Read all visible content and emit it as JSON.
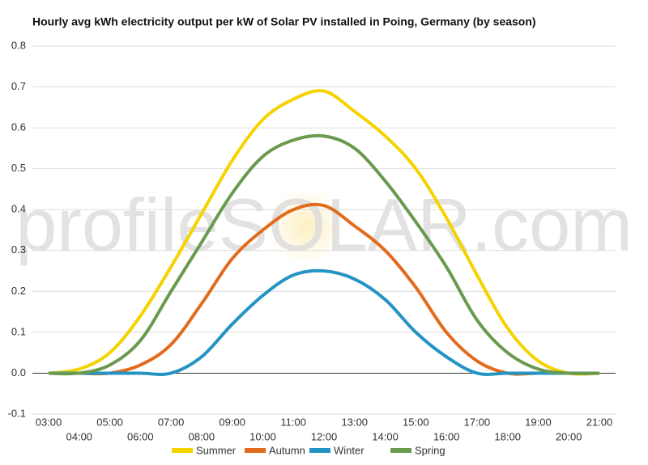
{
  "chart_data": {
    "type": "line",
    "title": "Hourly avg kWh electricity output per kW of Solar PV installed in Poing, Germany (by season)",
    "watermark": "profileSOLAR.com",
    "categories": [
      "03:00",
      "04:00",
      "05:00",
      "06:00",
      "07:00",
      "08:00",
      "09:00",
      "10:00",
      "11:00",
      "12:00",
      "13:00",
      "14:00",
      "15:00",
      "16:00",
      "17:00",
      "18:00",
      "19:00",
      "20:00",
      "21:00"
    ],
    "series": [
      {
        "name": "Summer",
        "color": "#f5d300",
        "values": [
          0,
          0.01,
          0.05,
          0.14,
          0.26,
          0.39,
          0.52,
          0.62,
          0.67,
          0.69,
          0.64,
          0.58,
          0.5,
          0.38,
          0.24,
          0.11,
          0.03,
          0,
          0
        ]
      },
      {
        "name": "Autumn",
        "color": "#e26b1d",
        "values": [
          0,
          0,
          0,
          0.02,
          0.07,
          0.17,
          0.28,
          0.35,
          0.4,
          0.41,
          0.36,
          0.3,
          0.21,
          0.1,
          0.03,
          0,
          0,
          0,
          0
        ]
      },
      {
        "name": "Winter",
        "color": "#2494c4",
        "values": [
          0,
          0,
          0,
          0,
          0,
          0.04,
          0.12,
          0.19,
          0.24,
          0.25,
          0.23,
          0.18,
          0.1,
          0.04,
          0,
          0,
          0,
          0,
          0
        ]
      },
      {
        "name": "Spring",
        "color": "#6a9a4e",
        "values": [
          0,
          0,
          0.02,
          0.08,
          0.2,
          0.32,
          0.44,
          0.53,
          0.57,
          0.58,
          0.55,
          0.47,
          0.37,
          0.26,
          0.13,
          0.05,
          0.01,
          0,
          0
        ]
      }
    ],
    "ylim": [
      -0.1,
      0.8
    ],
    "yticks": [
      -0.1,
      {
        "value": 0,
        "label": "0.0"
      },
      0.1,
      0.2,
      0.3,
      0.4,
      0.5,
      0.6,
      0.7,
      0.8
    ],
    "grid": true
  }
}
